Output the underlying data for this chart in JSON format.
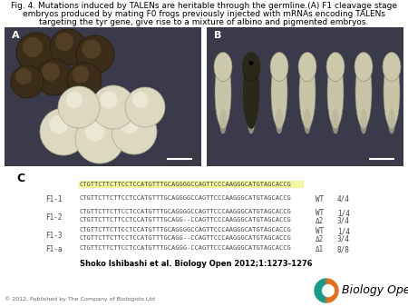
{
  "title_line1": "Fig. 4. Mutations induced by TALENs are heritable through the germline.(A) F1 cleavage stage",
  "title_line2": "embryos produced by mating F0 frogs previously injected with mRNAs encoding TALENs",
  "title_line3": "targeting the tyr gene, give rise to a mixture of albino and pigmented embryos.",
  "panel_c_label": "C",
  "reference_seq": "CTGTTCTTCTTCCTCCATGTTTGCAGGGGCCAGTTCCCAAGGGCATGTAGCACCG",
  "rows": [
    {
      "label": "F1-1",
      "lines": [
        {
          "seq": "CTGTTCTTCTTCCTCCATGTTTGCAGGGGCCAGTTCCCAAGGGCATGTAGCACCG",
          "type": "WT",
          "fraction": "4/4"
        }
      ]
    },
    {
      "label": "F1-2",
      "lines": [
        {
          "seq": "CTGTTCTTCTTCCTCCATGTTTGCAGGGGCCAGTTCCCAAGGGCATGTAGCACCG",
          "type": "WT",
          "fraction": "1/4"
        },
        {
          "seq": "CTGTTCTTCTTCCTCCATGTTTGCAGG--CCAGTTCCCAAGGGCATGTAGCACCG",
          "type": "Δ2",
          "fraction": "3/4"
        }
      ]
    },
    {
      "label": "F1-3",
      "lines": [
        {
          "seq": "CTGTTCTTCTTCCTCCATGTTTGCAGGGGCCAGTTCCCAAGGGCATGTAGCACCG",
          "type": "WT",
          "fraction": "1/4"
        },
        {
          "seq": "CTGTTCTTCTTCCTCCATGTTTGCAGG--CCAGTTCCCAAGGGCATGTAGCACCG",
          "type": "Δ2",
          "fraction": "3/4"
        }
      ]
    },
    {
      "label": "F1-a",
      "lines": [
        {
          "seq": "CTGTTCTTCTTCCTCCATGTTTGCAGGG-CCAGTTCCCAAGGGCATGTAGCACCG",
          "type": "Δ1",
          "fraction": "8/8"
        }
      ]
    }
  ],
  "citation": "Shoko Ishibashi et al. Biology Open 2012;1:1273-1276",
  "copyright": "© 2012. Published by The Company of Biologists Ltd",
  "highlight_color": "#f5f5a0",
  "seq_color": "#444444",
  "label_color": "#444444",
  "bg_color": "#ffffff",
  "panel_A_label": "A",
  "panel_B_label": "B",
  "panel_bg": "#3a3a4a",
  "embryo_dark": "#2a2010",
  "embryo_light": "#e8e4cc",
  "tadpole_light": "#d8d4b8",
  "scale_bar_color": "#ffffff",
  "title_fontsize": 6.5,
  "seq_fontsize": 5.0,
  "label_fontsize": 5.5
}
